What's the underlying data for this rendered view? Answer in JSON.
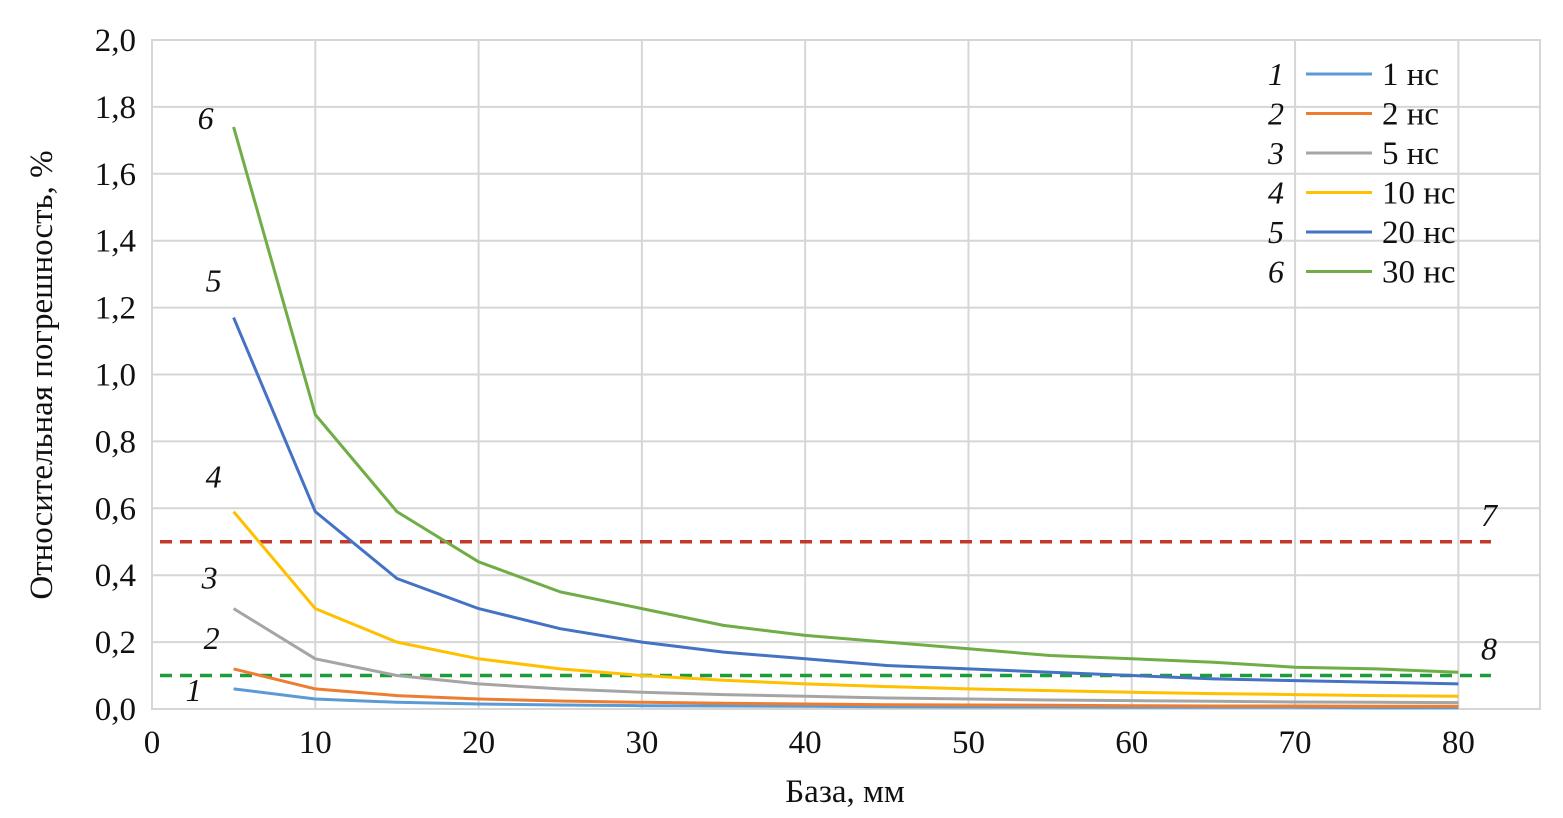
{
  "chart_data": {
    "type": "line",
    "xlabel": "База, мм",
    "ylabel": "Относительная погрешность, %",
    "xlim": [
      0,
      85
    ],
    "ylim": [
      0,
      2.0
    ],
    "x_ticks": [
      {
        "value": 0,
        "label": "0"
      },
      {
        "value": 10,
        "label": "10"
      },
      {
        "value": 20,
        "label": "20"
      },
      {
        "value": 30,
        "label": "30"
      },
      {
        "value": 40,
        "label": "40"
      },
      {
        "value": 50,
        "label": "50"
      },
      {
        "value": 60,
        "label": "60"
      },
      {
        "value": 70,
        "label": "70"
      },
      {
        "value": 80,
        "label": "80"
      }
    ],
    "y_ticks": [
      {
        "value": 0.0,
        "label": "0,0"
      },
      {
        "value": 0.2,
        "label": "0,2"
      },
      {
        "value": 0.4,
        "label": "0,4"
      },
      {
        "value": 0.6,
        "label": "0,6"
      },
      {
        "value": 0.8,
        "label": "0,8"
      },
      {
        "value": 1.0,
        "label": "1,0"
      },
      {
        "value": 1.2,
        "label": "1,2"
      },
      {
        "value": 1.4,
        "label": "1,4"
      },
      {
        "value": 1.6,
        "label": "1,6"
      },
      {
        "value": 1.8,
        "label": "1,8"
      },
      {
        "value": 2.0,
        "label": "2,0"
      }
    ],
    "grid": true,
    "legend_position": "top-right",
    "x": [
      5,
      10,
      15,
      20,
      25,
      30,
      35,
      40,
      45,
      50,
      55,
      60,
      65,
      70,
      75,
      80
    ],
    "series": [
      {
        "name": "1 нс",
        "number": "1",
        "color": "#5b9bd5",
        "values": [
          0.06,
          0.03,
          0.02,
          0.015,
          0.012,
          0.01,
          0.009,
          0.008,
          0.007,
          0.006,
          0.006,
          0.005,
          0.005,
          0.005,
          0.004,
          0.004
        ]
      },
      {
        "name": "2 нс",
        "number": "2",
        "color": "#ed7d31",
        "values": [
          0.12,
          0.06,
          0.04,
          0.03,
          0.024,
          0.02,
          0.017,
          0.015,
          0.013,
          0.012,
          0.011,
          0.01,
          0.009,
          0.009,
          0.008,
          0.008
        ]
      },
      {
        "name": "5 нс",
        "number": "3",
        "color": "#a5a5a5",
        "values": [
          0.3,
          0.15,
          0.1,
          0.075,
          0.06,
          0.05,
          0.043,
          0.038,
          0.033,
          0.03,
          0.027,
          0.025,
          0.023,
          0.021,
          0.02,
          0.019
        ]
      },
      {
        "name": "10 нс",
        "number": "4",
        "color": "#ffc000",
        "values": [
          0.59,
          0.3,
          0.2,
          0.15,
          0.12,
          0.1,
          0.086,
          0.075,
          0.067,
          0.06,
          0.055,
          0.05,
          0.046,
          0.043,
          0.04,
          0.038
        ]
      },
      {
        "name": "20 нс",
        "number": "5",
        "color": "#4472c4",
        "values": [
          1.17,
          0.59,
          0.39,
          0.3,
          0.24,
          0.2,
          0.17,
          0.15,
          0.13,
          0.12,
          0.11,
          0.1,
          0.09,
          0.085,
          0.08,
          0.075
        ]
      },
      {
        "name": "30 нс",
        "number": "6",
        "color": "#70ad47",
        "values": [
          1.74,
          0.88,
          0.59,
          0.44,
          0.35,
          0.3,
          0.25,
          0.22,
          0.2,
          0.18,
          0.16,
          0.15,
          0.14,
          0.125,
          0.12,
          0.11
        ]
      }
    ],
    "reference_lines": [
      {
        "number": "7",
        "color": "#c0392b",
        "y": 0.5,
        "x": [
          0,
          82
        ],
        "style": "dashed"
      },
      {
        "number": "8",
        "color": "#1e9c3a",
        "y": 0.1,
        "x": [
          0,
          82
        ],
        "style": "dashed"
      }
    ]
  }
}
